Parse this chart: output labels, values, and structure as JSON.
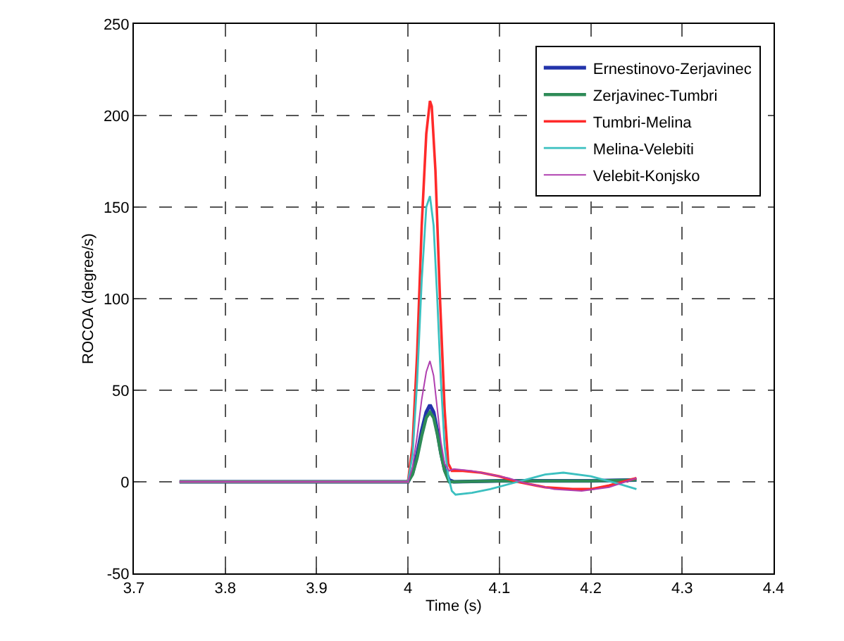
{
  "chart_data": {
    "type": "line",
    "xlabel": "Time (s)",
    "ylabel": "ROCOA (degree/s)",
    "xlim": [
      3.7,
      4.4
    ],
    "xticks": [
      3.7,
      3.8,
      3.9,
      {
        "value": 4,
        "label": "4"
      },
      4.1,
      4.2,
      4.3,
      4.4
    ],
    "ylim": [
      -50,
      250
    ],
    "yticks": [
      -50,
      0,
      50,
      100,
      150,
      200,
      250
    ],
    "grid": true,
    "legend": "top right",
    "series": [
      {
        "name": "Ernestinovo-Zerjavinec",
        "color": "#2233aa",
        "x": [
          3.75,
          4.0,
          4.005,
          4.01,
          4.015,
          4.02,
          4.024,
          4.028,
          4.032,
          4.036,
          4.04,
          4.045,
          4.05,
          4.1,
          4.15,
          4.2,
          4.25
        ],
        "values": [
          0,
          0,
          5,
          15,
          28,
          38,
          42,
          38,
          28,
          16,
          7,
          1,
          0,
          0.5,
          0.5,
          0.5,
          1
        ]
      },
      {
        "name": "Zerjavinec-Tumbri",
        "color": "#2e8b57",
        "x": [
          3.75,
          4.0,
          4.005,
          4.01,
          4.015,
          4.02,
          4.024,
          4.028,
          4.032,
          4.036,
          4.04,
          4.045,
          4.05,
          4.1,
          4.15,
          4.2,
          4.25
        ],
        "values": [
          0,
          0,
          4,
          13,
          25,
          35,
          38,
          35,
          26,
          15,
          6,
          0,
          0,
          0.5,
          0.5,
          0.5,
          1
        ]
      },
      {
        "name": "Tumbri-Melina",
        "color": "#ff2a2a",
        "x": [
          3.75,
          4.0,
          4.005,
          4.01,
          4.015,
          4.02,
          4.024,
          4.026,
          4.03,
          4.035,
          4.04,
          4.044,
          4.048,
          4.06,
          4.08,
          4.1,
          4.12,
          4.15,
          4.18,
          4.2,
          4.22,
          4.25
        ],
        "values": [
          0,
          0,
          20,
          70,
          140,
          190,
          208,
          205,
          170,
          100,
          40,
          10,
          6,
          6,
          5,
          3,
          0,
          -3,
          -4,
          -4,
          -2,
          2
        ]
      },
      {
        "name": "Melina-Velebiti",
        "color": "#3cc0c0",
        "x": [
          3.75,
          4.0,
          4.005,
          4.01,
          4.015,
          4.02,
          4.024,
          4.028,
          4.032,
          4.036,
          4.04,
          4.044,
          4.048,
          4.052,
          4.07,
          4.09,
          4.12,
          4.15,
          4.17,
          4.2,
          4.23,
          4.25
        ],
        "values": [
          0,
          0,
          15,
          55,
          110,
          150,
          156,
          140,
          100,
          55,
          20,
          3,
          -5,
          -7,
          -6,
          -4,
          0,
          4,
          5,
          3,
          -1,
          -4
        ]
      },
      {
        "name": "Velebit-Konjsko",
        "color": "#b040b0",
        "x": [
          3.75,
          4.0,
          4.005,
          4.01,
          4.015,
          4.02,
          4.024,
          4.028,
          4.032,
          4.036,
          4.04,
          4.045,
          4.05,
          4.07,
          4.09,
          4.11,
          4.13,
          4.16,
          4.19,
          4.22,
          4.25
        ],
        "values": [
          0,
          0,
          8,
          25,
          45,
          60,
          66,
          58,
          40,
          22,
          10,
          6,
          7,
          6,
          4,
          2,
          -1,
          -4,
          -5,
          -3,
          2
        ]
      }
    ]
  }
}
